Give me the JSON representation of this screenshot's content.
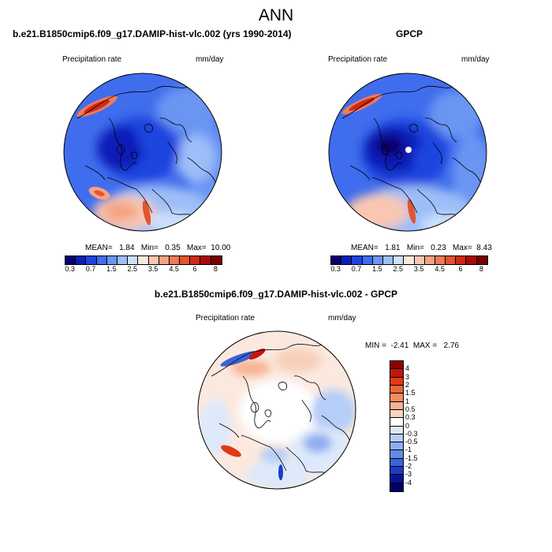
{
  "figure": {
    "title": "ANN"
  },
  "panels": {
    "model": {
      "title": "b.e21.B1850cmip6.f09_g17.DAMIP-hist-vlc.002 (yrs 1990-2014)",
      "variable": "Precipitation rate",
      "units": "mm/day",
      "stats": {
        "mean_label": "MEAN=",
        "mean": "1.84",
        "min_label": "Min=",
        "min": "0.35",
        "max_label": "Max=",
        "max": "10.00"
      }
    },
    "obs": {
      "title": "GPCP",
      "variable": "Precipitation rate",
      "units": "mm/day",
      "stats": {
        "mean_label": "MEAN=",
        "mean": "1.81",
        "min_label": "Min=",
        "min": "0.23",
        "max_label": "Max=",
        "max": "8.43"
      }
    },
    "diff": {
      "title": "b.e21.B1850cmip6.f09_g17.DAMIP-hist-vlc.002 - GPCP",
      "variable": "Precipitation rate",
      "units": "mm/day",
      "stats": {
        "min_label": "MIN =",
        "min": "-2.41",
        "max_label": "MAX =",
        "max": "2.76"
      }
    }
  },
  "colorbars": {
    "precip": {
      "colors": [
        "#08006e",
        "#0b1fb8",
        "#1c45e0",
        "#3f6ded",
        "#6b95f3",
        "#9dbef8",
        "#cce0fb",
        "#fbe7dc",
        "#f9c7b0",
        "#f5a283",
        "#ee7a59",
        "#e4542e",
        "#cd2b13",
        "#a80c0a",
        "#7a0000"
      ],
      "tick_labels": [
        "0.3",
        "0.7",
        "1.5",
        "2.5",
        "3.5",
        "4.5",
        "6",
        "8"
      ]
    },
    "diff": {
      "colors": [
        "#8b0000",
        "#c4150f",
        "#e13a12",
        "#ef6534",
        "#f58c63",
        "#f8b293",
        "#fbd4c0",
        "#ffffff",
        "#dde9fb",
        "#b6cdf7",
        "#8faef0",
        "#6488e6",
        "#3b62d8",
        "#1c3bc2",
        "#07129b",
        "#000066"
      ],
      "tick_labels": [
        "4",
        "3",
        "2",
        "1.5",
        "1",
        "0.5",
        "0.3",
        "0",
        "-0.3",
        "-0.5",
        "-1",
        "-1.5",
        "-2",
        "-3",
        "-4"
      ]
    }
  }
}
